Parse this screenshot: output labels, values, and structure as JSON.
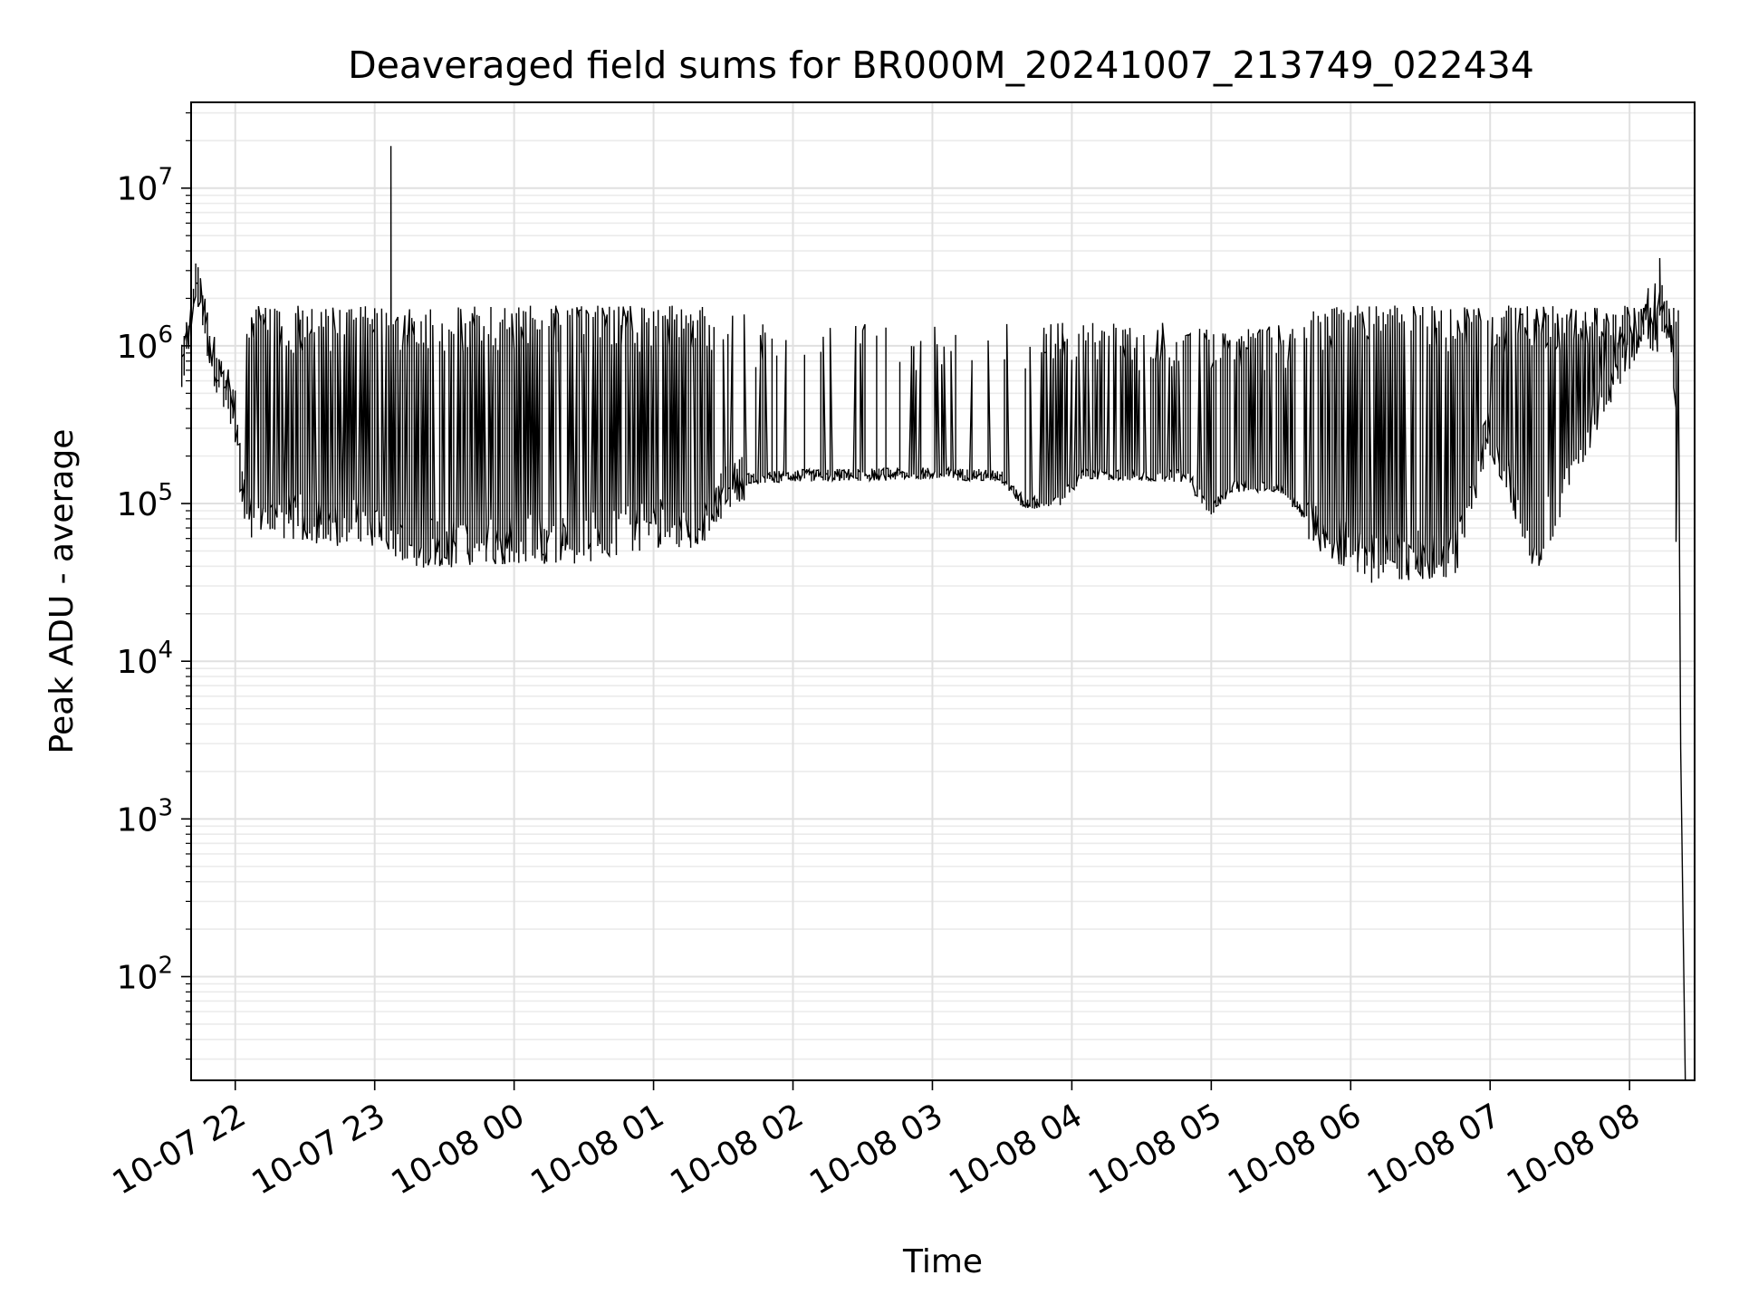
{
  "chart_data": {
    "type": "line",
    "title": "Deaveraged field sums for BR000M_20241007_213749_022434",
    "xlabel": "Time",
    "ylabel": "Peak ADU - average",
    "yscale": "log",
    "grid": true,
    "legend": "none",
    "xlim": [
      "2024-10-07 21:41",
      "2024-10-08 08:28"
    ],
    "ylim": [
      22,
      35000000
    ],
    "x_ticks": [
      {
        "value": "2024-10-07 22:00",
        "label": "10-07 22"
      },
      {
        "value": "2024-10-07 23:00",
        "label": "10-07 23"
      },
      {
        "value": "2024-10-08 00:00",
        "label": "10-08 00"
      },
      {
        "value": "2024-10-08 01:00",
        "label": "10-08 01"
      },
      {
        "value": "2024-10-08 02:00",
        "label": "10-08 02"
      },
      {
        "value": "2024-10-08 03:00",
        "label": "10-08 03"
      },
      {
        "value": "2024-10-08 04:00",
        "label": "10-08 04"
      },
      {
        "value": "2024-10-08 05:00",
        "label": "10-08 05"
      },
      {
        "value": "2024-10-08 06:00",
        "label": "10-08 06"
      },
      {
        "value": "2024-10-08 07:00",
        "label": "10-08 07"
      },
      {
        "value": "2024-10-08 08:00",
        "label": "10-08 08"
      }
    ],
    "y_ticks": [
      {
        "value": 100,
        "base": "10",
        "exp": "2"
      },
      {
        "value": 1000,
        "base": "10",
        "exp": "3"
      },
      {
        "value": 10000,
        "base": "10",
        "exp": "4"
      },
      {
        "value": 100000,
        "base": "10",
        "exp": "5"
      },
      {
        "value": 1000000,
        "base": "10",
        "exp": "6"
      },
      {
        "value": 10000000,
        "base": "10",
        "exp": "7"
      }
    ],
    "series": [
      {
        "color": "#000000",
        "baseline": [
          {
            "x": "2024-10-07 21:37",
            "y": 600000
          },
          {
            "x": "2024-10-07 21:44",
            "y": 2700000
          },
          {
            "x": "2024-10-07 21:50",
            "y": 900000
          },
          {
            "x": "2024-10-07 22:00",
            "y": 400000
          },
          {
            "x": "2024-10-07 22:05",
            "y": 80000
          },
          {
            "x": "2024-10-07 22:30",
            "y": 80000
          },
          {
            "x": "2024-10-07 23:00",
            "y": 75000
          },
          {
            "x": "2024-10-07 23:20",
            "y": 55000
          },
          {
            "x": "2024-10-08 00:00",
            "y": 60000
          },
          {
            "x": "2024-10-08 00:30",
            "y": 60000
          },
          {
            "x": "2024-10-08 01:00",
            "y": 75000
          },
          {
            "x": "2024-10-08 01:20",
            "y": 75000
          },
          {
            "x": "2024-10-08 01:35",
            "y": 140000
          },
          {
            "x": "2024-10-08 02:00",
            "y": 150000
          },
          {
            "x": "2024-10-08 03:00",
            "y": 155000
          },
          {
            "x": "2024-10-08 03:30",
            "y": 150000
          },
          {
            "x": "2024-10-08 03:40",
            "y": 100000
          },
          {
            "x": "2024-10-08 03:55",
            "y": 105000
          },
          {
            "x": "2024-10-08 04:05",
            "y": 155000
          },
          {
            "x": "2024-10-08 04:50",
            "y": 150000
          },
          {
            "x": "2024-10-08 05:00",
            "y": 90000
          },
          {
            "x": "2024-10-08 05:10",
            "y": 130000
          },
          {
            "x": "2024-10-08 05:30",
            "y": 130000
          },
          {
            "x": "2024-10-08 05:45",
            "y": 70000
          },
          {
            "x": "2024-10-08 06:10",
            "y": 45000
          },
          {
            "x": "2024-10-08 06:45",
            "y": 48000
          },
          {
            "x": "2024-10-08 07:00",
            "y": 300000
          },
          {
            "x": "2024-10-08 07:20",
            "y": 50000
          },
          {
            "x": "2024-10-08 07:55",
            "y": 700000
          },
          {
            "x": "2024-10-08 08:15",
            "y": 2500000
          },
          {
            "x": "2024-10-08 08:20",
            "y": 500000
          },
          {
            "x": "2024-10-08 08:24",
            "y": 20
          }
        ],
        "spike_peaks": [
          {
            "x": "2024-10-07 23:07",
            "y": 18500000
          },
          {
            "x": "2024-10-08 08:13",
            "y": 3600000
          }
        ]
      }
    ]
  }
}
